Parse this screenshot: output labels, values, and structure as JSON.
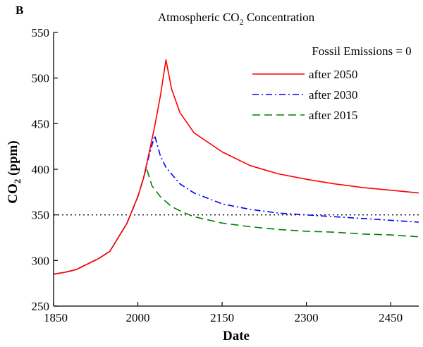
{
  "chart_data": {
    "type": "line",
    "panel_label": "B",
    "title_main": "Atmospheric CO",
    "title_sub": "2",
    "title_end": " Concentration",
    "xlabel": "Date",
    "ylabel_main": "CO",
    "ylabel_sub": "2",
    "ylabel_end": " (ppm)",
    "xlim": [
      1850,
      2500
    ],
    "ylim": [
      250,
      550
    ],
    "xticks": [
      1850,
      2000,
      2150,
      2300,
      2450
    ],
    "yticks": [
      250,
      300,
      350,
      400,
      450,
      500,
      550
    ],
    "grid": false,
    "legend_title": "Fossil Emissions = 0",
    "legend_position": "top-right",
    "reference_line": {
      "y": 350,
      "style": "dotted",
      "color": "#000000"
    },
    "historical": {
      "x": [
        1850,
        1870,
        1890,
        1910,
        1930,
        1950,
        1960,
        1970,
        1980,
        1990,
        2000,
        2010
      ],
      "y": [
        285,
        287,
        290,
        296,
        302,
        310,
        320,
        330,
        340,
        355,
        370,
        390
      ]
    },
    "series": [
      {
        "name": "after 2050",
        "color": "#ff0000",
        "style": "solid",
        "x": [
          2010,
          2020,
          2030,
          2040,
          2050,
          2060,
          2075,
          2100,
          2150,
          2200,
          2250,
          2300,
          2350,
          2400,
          2450,
          2500
        ],
        "y": [
          390,
          418,
          447,
          480,
          520,
          488,
          462,
          440,
          419,
          404,
          395,
          389,
          384,
          380,
          377,
          374
        ]
      },
      {
        "name": "after 2030",
        "color": "#0000ff",
        "style": "dashdot",
        "x": [
          2010,
          2020,
          2030,
          2040,
          2050,
          2075,
          2100,
          2150,
          2200,
          2250,
          2300,
          2350,
          2400,
          2450,
          2500
        ],
        "y": [
          390,
          415,
          437,
          415,
          402,
          384,
          374,
          362,
          356,
          352,
          350,
          348,
          346,
          344,
          342
        ]
      },
      {
        "name": "after 2015",
        "color": "#008000",
        "style": "dashed",
        "x": [
          2010,
          2015,
          2025,
          2040,
          2060,
          2080,
          2100,
          2150,
          2200,
          2250,
          2300,
          2350,
          2400,
          2450,
          2500
        ],
        "y": [
          390,
          402,
          382,
          370,
          359,
          353,
          348,
          341,
          337,
          334,
          332,
          331,
          329,
          328,
          326
        ]
      }
    ]
  }
}
